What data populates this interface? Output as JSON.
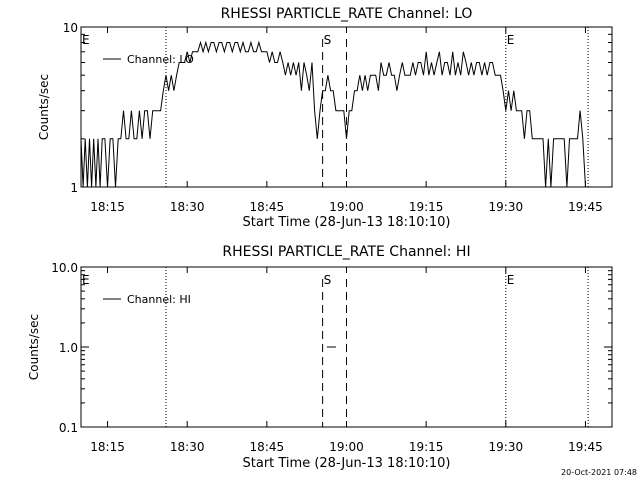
{
  "footer": {
    "timestamp": "20-Oct-2021 07:48"
  },
  "chart_data": [
    {
      "type": "line",
      "title": "RHESSI PARTICLE_RATE Channel: LO",
      "xlabel": "Start Time (28-Jun-13 18:10:10)",
      "ylabel": "Counts/sec",
      "x_units": "minutes after 18:10:10",
      "xlim": [
        0,
        100
      ],
      "ylim": [
        1,
        10
      ],
      "yscale": "log",
      "x_ticks": [
        {
          "label": "18:15",
          "x": 5
        },
        {
          "label": "18:30",
          "x": 20
        },
        {
          "label": "18:45",
          "x": 35
        },
        {
          "label": "19:00",
          "x": 50
        },
        {
          "label": "19:15",
          "x": 65
        },
        {
          "label": "19:30",
          "x": 80
        },
        {
          "label": "19:45",
          "x": 95
        }
      ],
      "y_ticks": [
        {
          "label": "10",
          "y": 10
        },
        {
          "label": "1",
          "y": 1
        }
      ],
      "legend": {
        "entries": [
          "Channel: LO"
        ],
        "placement": "top-left"
      },
      "markers": [
        {
          "label": "E",
          "x": 0,
          "style": "dotted"
        },
        {
          "label": "",
          "x": 16,
          "style": "dotted"
        },
        {
          "label": "S",
          "x": 45.5,
          "style": "dashed"
        },
        {
          "label": "",
          "x": 50,
          "style": "dashed"
        },
        {
          "label": "E",
          "x": 80,
          "style": "dotted"
        },
        {
          "label": "",
          "x": 95.5,
          "style": "dotted"
        }
      ],
      "series": [
        {
          "name": "Channel: LO",
          "points": [
            [
              0,
              2
            ],
            [
              0.4,
              1
            ],
            [
              0.8,
              2
            ],
            [
              1.2,
              1
            ],
            [
              1.6,
              2
            ],
            [
              2,
              1
            ],
            [
              2.4,
              2
            ],
            [
              2.8,
              1
            ],
            [
              3.2,
              2
            ],
            [
              3.6,
              1
            ],
            [
              4,
              2
            ],
            [
              4.5,
              2
            ],
            [
              5,
              1
            ],
            [
              5.5,
              2
            ],
            [
              6,
              2
            ],
            [
              6.5,
              1
            ],
            [
              7,
              2
            ],
            [
              7.5,
              2
            ],
            [
              8,
              3
            ],
            [
              8.5,
              2
            ],
            [
              9,
              2
            ],
            [
              9.5,
              3
            ],
            [
              10,
              2
            ],
            [
              10.5,
              2
            ],
            [
              11,
              3
            ],
            [
              11.5,
              2
            ],
            [
              12,
              3
            ],
            [
              12.5,
              3
            ],
            [
              13,
              2
            ],
            [
              13.5,
              3
            ],
            [
              14,
              3
            ],
            [
              14.5,
              3
            ],
            [
              15,
              3
            ],
            [
              15.5,
              4
            ],
            [
              16,
              5
            ],
            [
              16.5,
              4
            ],
            [
              17,
              5
            ],
            [
              17.5,
              4
            ],
            [
              18,
              5
            ],
            [
              18.5,
              6
            ],
            [
              19,
              6
            ],
            [
              19.5,
              6
            ],
            [
              20,
              7
            ],
            [
              20.5,
              6
            ],
            [
              21,
              7
            ],
            [
              21.5,
              7
            ],
            [
              22,
              7
            ],
            [
              22.5,
              8
            ],
            [
              23,
              7
            ],
            [
              23.5,
              8
            ],
            [
              24,
              7
            ],
            [
              24.5,
              8
            ],
            [
              25,
              8
            ],
            [
              25.5,
              7
            ],
            [
              26,
              8
            ],
            [
              26.5,
              8
            ],
            [
              27,
              7
            ],
            [
              27.5,
              8
            ],
            [
              28,
              8
            ],
            [
              28.5,
              7
            ],
            [
              29,
              8
            ],
            [
              29.5,
              8
            ],
            [
              30,
              7
            ],
            [
              30.5,
              8
            ],
            [
              31,
              7
            ],
            [
              31.5,
              7
            ],
            [
              32,
              8
            ],
            [
              32.5,
              7
            ],
            [
              33,
              7
            ],
            [
              33.5,
              8
            ],
            [
              34,
              7
            ],
            [
              34.5,
              7
            ],
            [
              35,
              7
            ],
            [
              35.5,
              6
            ],
            [
              36,
              7
            ],
            [
              36.5,
              6
            ],
            [
              37,
              6
            ],
            [
              37.5,
              7
            ],
            [
              38,
              6
            ],
            [
              38.5,
              5
            ],
            [
              39,
              6
            ],
            [
              39.5,
              5
            ],
            [
              40,
              6
            ],
            [
              40.5,
              5
            ],
            [
              41,
              6
            ],
            [
              41.5,
              4
            ],
            [
              42,
              6
            ],
            [
              42.5,
              5
            ],
            [
              43,
              4
            ],
            [
              43.5,
              6
            ],
            [
              44,
              3
            ],
            [
              44.5,
              2
            ],
            [
              45,
              3
            ],
            [
              45.5,
              4
            ],
            [
              46,
              4
            ],
            [
              46.5,
              5
            ],
            [
              47,
              4
            ],
            [
              47.5,
              4
            ],
            [
              48,
              3
            ],
            [
              48.5,
              3
            ],
            [
              49,
              3
            ],
            [
              49.5,
              3
            ],
            [
              50,
              2
            ],
            [
              50.5,
              3
            ],
            [
              51,
              3
            ],
            [
              51.5,
              4
            ],
            [
              52,
              4
            ],
            [
              52.5,
              5
            ],
            [
              53,
              4
            ],
            [
              53.5,
              5
            ],
            [
              54,
              4
            ],
            [
              54.5,
              5
            ],
            [
              55,
              5
            ],
            [
              55.5,
              5
            ],
            [
              56,
              4
            ],
            [
              56.5,
              6
            ],
            [
              57,
              5
            ],
            [
              57.5,
              5
            ],
            [
              58,
              6
            ],
            [
              58.5,
              5
            ],
            [
              59,
              5
            ],
            [
              59.5,
              4
            ],
            [
              60,
              5
            ],
            [
              60.5,
              6
            ],
            [
              61,
              5
            ],
            [
              61.5,
              5
            ],
            [
              62,
              5
            ],
            [
              62.5,
              6
            ],
            [
              63,
              5
            ],
            [
              63.5,
              6
            ],
            [
              64,
              6
            ],
            [
              64.5,
              5
            ],
            [
              65,
              7
            ],
            [
              65.5,
              5
            ],
            [
              66,
              6
            ],
            [
              66.5,
              5
            ],
            [
              67,
              6
            ],
            [
              67.5,
              7
            ],
            [
              68,
              5
            ],
            [
              68.5,
              6
            ],
            [
              69,
              6
            ],
            [
              69.5,
              5
            ],
            [
              70,
              7
            ],
            [
              70.5,
              5
            ],
            [
              71,
              6
            ],
            [
              71.5,
              5
            ],
            [
              72,
              7
            ],
            [
              72.5,
              6
            ],
            [
              73,
              5
            ],
            [
              73.5,
              6
            ],
            [
              74,
              5
            ],
            [
              74.5,
              6
            ],
            [
              75,
              6
            ],
            [
              75.5,
              5
            ],
            [
              76,
              6
            ],
            [
              76.5,
              5
            ],
            [
              77,
              6
            ],
            [
              77.5,
              6
            ],
            [
              78,
              5
            ],
            [
              78.5,
              5
            ],
            [
              79,
              5
            ],
            [
              79.5,
              4
            ],
            [
              80,
              3
            ],
            [
              80.5,
              4
            ],
            [
              81,
              3
            ],
            [
              81.5,
              4
            ],
            [
              82,
              3
            ],
            [
              82.5,
              3
            ],
            [
              83,
              3
            ],
            [
              83.5,
              2
            ],
            [
              84,
              3
            ],
            [
              84.5,
              3
            ],
            [
              85,
              2
            ],
            [
              85.5,
              2
            ],
            [
              86,
              2
            ],
            [
              86.5,
              2
            ],
            [
              87,
              2
            ],
            [
              87.5,
              1
            ],
            [
              88,
              2
            ],
            [
              88.5,
              1
            ],
            [
              89,
              2
            ],
            [
              89.5,
              2
            ],
            [
              90,
              2
            ],
            [
              90.5,
              2
            ],
            [
              91,
              2
            ],
            [
              91.5,
              1
            ],
            [
              92,
              2
            ],
            [
              92.5,
              2
            ],
            [
              93,
              2
            ],
            [
              93.5,
              2
            ],
            [
              94,
              3
            ],
            [
              94.5,
              2
            ],
            [
              95,
              1
            ]
          ]
        }
      ]
    },
    {
      "type": "line",
      "title": "RHESSI PARTICLE_RATE Channel: HI",
      "xlabel": "Start Time (28-Jun-13 18:10:10)",
      "ylabel": "Counts/sec",
      "x_units": "minutes after 18:10:10",
      "xlim": [
        0,
        100
      ],
      "ylim": [
        0.1,
        10
      ],
      "yscale": "log",
      "x_ticks": [
        {
          "label": "18:15",
          "x": 5
        },
        {
          "label": "18:30",
          "x": 20
        },
        {
          "label": "18:45",
          "x": 35
        },
        {
          "label": "19:00",
          "x": 50
        },
        {
          "label": "19:15",
          "x": 65
        },
        {
          "label": "19:30",
          "x": 80
        },
        {
          "label": "19:45",
          "x": 95
        }
      ],
      "y_ticks": [
        {
          "label": "10.0",
          "y": 10
        },
        {
          "label": "1.0",
          "y": 1
        },
        {
          "label": "0.1",
          "y": 0.1
        }
      ],
      "legend": {
        "entries": [
          "Channel: HI"
        ],
        "placement": "top-left"
      },
      "markers": [
        {
          "label": "E",
          "x": 0,
          "style": "dotted"
        },
        {
          "label": "",
          "x": 16,
          "style": "dotted"
        },
        {
          "label": "S",
          "x": 45.5,
          "style": "dashed"
        },
        {
          "label": "",
          "x": 50,
          "style": "dashed"
        },
        {
          "label": "E",
          "x": 80,
          "style": "dotted"
        },
        {
          "label": "",
          "x": 95.5,
          "style": "dotted"
        }
      ],
      "series": [
        {
          "name": "Channel: HI",
          "points": [
            [
              46.3,
              1
            ],
            [
              48,
              1
            ]
          ]
        }
      ]
    }
  ]
}
